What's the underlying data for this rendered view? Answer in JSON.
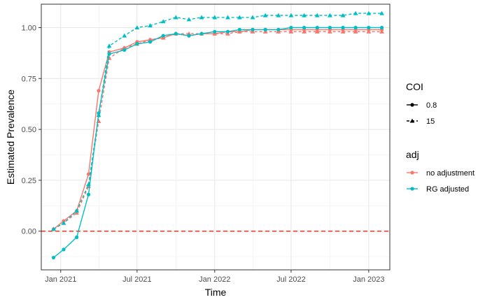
{
  "chart_data": {
    "type": "line",
    "xlabel": "Time",
    "ylabel": "Estimated Prevalence",
    "x_ticks": [
      "2021-01-01",
      "2021-07-01",
      "2022-01-01",
      "2022-07-01",
      "2023-01-01"
    ],
    "x_tick_labels": [
      "Jan 2021",
      "Jul 2021",
      "Jan 2022",
      "Jul 2022",
      "Jan 2023"
    ],
    "xlim": [
      "2020-11-16",
      "2023-02-20"
    ],
    "y_ticks": [
      0.0,
      0.25,
      0.5,
      0.75,
      1.0
    ],
    "y_tick_labels": [
      "0.00",
      "0.25",
      "0.50",
      "0.75",
      "1.00"
    ],
    "ylim": [
      -0.19,
      1.115
    ],
    "grid": true,
    "reference_line": {
      "y": 0.0,
      "color": "#e8402e",
      "style": "dashed"
    },
    "legend": {
      "placement": "right",
      "groups": [
        {
          "title": "COI",
          "entries": [
            {
              "label": "0.8",
              "style": "solid",
              "shape": "circle"
            },
            {
              "label": "15",
              "style": "dashed",
              "shape": "triangle"
            }
          ]
        },
        {
          "title": "adj",
          "entries": [
            {
              "label": "no adjustment",
              "color": "#F8766D"
            },
            {
              "label": "RG adjusted",
              "color": "#00BFC4"
            }
          ]
        }
      ]
    },
    "series": [
      {
        "adj": "no adjustment",
        "coi": "0.8",
        "color": "#F8766D",
        "style": "solid",
        "shape": "circle",
        "x": [
          "2020-12-15",
          "2021-01-08",
          "2021-02-08",
          "2021-03-08",
          "2021-04-01",
          "2021-04-26",
          "2021-06-01",
          "2021-07-01",
          "2021-08-01",
          "2021-09-01",
          "2021-10-01",
          "2021-11-01",
          "2021-12-01",
          "2022-01-01",
          "2022-02-01",
          "2022-03-01",
          "2022-04-01",
          "2022-05-01",
          "2022-06-01",
          "2022-07-01",
          "2022-08-01",
          "2022-09-01",
          "2022-10-01",
          "2022-11-01",
          "2022-12-01",
          "2023-01-01",
          "2023-02-01"
        ],
        "y": [
          0.01,
          0.05,
          0.1,
          0.28,
          0.69,
          0.88,
          0.9,
          0.93,
          0.94,
          0.95,
          0.97,
          0.96,
          0.97,
          0.97,
          0.98,
          0.98,
          0.99,
          0.99,
          0.99,
          0.99,
          0.99,
          0.99,
          0.99,
          0.99,
          0.99,
          0.99,
          0.99
        ]
      },
      {
        "adj": "no adjustment",
        "coi": "15",
        "color": "#F8766D",
        "style": "dashed",
        "shape": "triangle",
        "x": [
          "2020-12-15",
          "2021-01-08",
          "2021-02-08",
          "2021-03-08",
          "2021-04-01",
          "2021-04-26",
          "2021-06-01",
          "2021-07-01",
          "2021-08-01",
          "2021-09-01",
          "2021-10-01",
          "2021-11-01",
          "2021-12-01",
          "2022-01-01",
          "2022-02-01",
          "2022-03-01",
          "2022-04-01",
          "2022-05-01",
          "2022-06-01",
          "2022-07-01",
          "2022-08-01",
          "2022-09-01",
          "2022-10-01",
          "2022-11-01",
          "2022-12-01",
          "2023-01-01",
          "2023-02-01"
        ],
        "y": [
          0.01,
          0.04,
          0.09,
          0.22,
          0.54,
          0.85,
          0.9,
          0.92,
          0.94,
          0.95,
          0.97,
          0.97,
          0.97,
          0.97,
          0.97,
          0.98,
          0.98,
          0.98,
          0.98,
          0.98,
          0.98,
          0.98,
          0.98,
          0.98,
          0.98,
          0.98,
          0.98
        ]
      },
      {
        "adj": "RG adjusted",
        "coi": "0.8",
        "color": "#00BFC4",
        "style": "solid",
        "shape": "circle",
        "x": [
          "2020-12-15",
          "2021-01-08",
          "2021-02-08",
          "2021-03-08",
          "2021-04-01",
          "2021-04-26",
          "2021-06-01",
          "2021-07-01",
          "2021-08-01",
          "2021-09-01",
          "2021-10-01",
          "2021-11-01",
          "2021-12-01",
          "2022-01-01",
          "2022-02-01",
          "2022-03-01",
          "2022-04-01",
          "2022-05-01",
          "2022-06-01",
          "2022-07-01",
          "2022-08-01",
          "2022-09-01",
          "2022-10-01",
          "2022-11-01",
          "2022-12-01",
          "2023-01-01",
          "2023-02-01"
        ],
        "y": [
          -0.13,
          -0.09,
          -0.03,
          0.18,
          0.58,
          0.87,
          0.89,
          0.92,
          0.93,
          0.96,
          0.97,
          0.96,
          0.97,
          0.98,
          0.98,
          0.99,
          0.99,
          0.99,
          0.99,
          1.0,
          1.0,
          1.0,
          1.0,
          1.0,
          1.0,
          1.0,
          1.0
        ]
      },
      {
        "adj": "RG adjusted",
        "coi": "15",
        "color": "#00BFC4",
        "style": "dashed",
        "shape": "triangle",
        "x": [
          "2020-12-15",
          "2021-01-08",
          "2021-02-08",
          "2021-03-08",
          "2021-04-01",
          "2021-04-26",
          "2021-06-01",
          "2021-07-01",
          "2021-08-01",
          "2021-09-01",
          "2021-10-01",
          "2021-11-01",
          "2021-12-01",
          "2022-01-01",
          "2022-02-01",
          "2022-03-01",
          "2022-04-01",
          "2022-05-01",
          "2022-06-01",
          "2022-07-01",
          "2022-08-01",
          "2022-09-01",
          "2022-10-01",
          "2022-11-01",
          "2022-12-01",
          "2023-01-01",
          "2023-02-01"
        ],
        "y": [
          0.01,
          0.04,
          0.1,
          0.23,
          0.57,
          0.91,
          0.96,
          1.0,
          1.01,
          1.03,
          1.05,
          1.04,
          1.05,
          1.05,
          1.05,
          1.05,
          1.05,
          1.06,
          1.06,
          1.06,
          1.06,
          1.06,
          1.06,
          1.06,
          1.07,
          1.07,
          1.07
        ]
      }
    ]
  }
}
